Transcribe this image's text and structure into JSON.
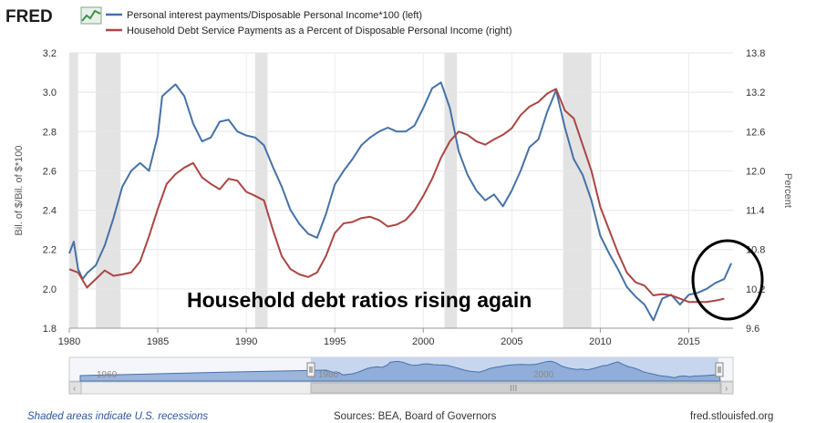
{
  "branding": {
    "logo": "FRED"
  },
  "legend": [
    {
      "label": "Personal interest payments/Disposable Personal Income*100 (left)",
      "color": "#4572a7"
    },
    {
      "label": "Household Debt Service Payments as a Percent of Disposable Personal Income (right)",
      "color": "#aa4643"
    }
  ],
  "annotation": {
    "text": "Household debt ratios rising again",
    "highlight_color": "#000000"
  },
  "footer": {
    "recession_note": "Shaded areas indicate U.S. recessions",
    "sources": "Sources: BEA, Board of Governors",
    "site": "fred.stlouisfed.org"
  },
  "navigator": {
    "year_labels": [
      "1960",
      "1980",
      "2000"
    ],
    "scroll_left": "‹",
    "scroll_right": "›",
    "grip": "III"
  },
  "chart_data": {
    "type": "line",
    "x_range": [
      1980,
      2017.5
    ],
    "x_ticks": [
      "1980",
      "1985",
      "1990",
      "1995",
      "2000",
      "2005",
      "2010",
      "2015"
    ],
    "y_left": {
      "label": "Bil. of $/Bil. of $*100",
      "range": [
        1.8,
        3.2
      ],
      "ticks": [
        "1.8",
        "2.0",
        "2.2",
        "2.4",
        "2.6",
        "2.8",
        "3.0",
        "3.2"
      ]
    },
    "y_right": {
      "label": "Percent",
      "range": [
        9.6,
        13.8
      ],
      "ticks": [
        "9.6",
        "10.2",
        "10.8",
        "11.4",
        "12.0",
        "12.6",
        "13.2",
        "13.8"
      ]
    },
    "recessions": [
      [
        1980.0,
        1980.5
      ],
      [
        1981.5,
        1982.9
      ],
      [
        1990.5,
        1991.2
      ],
      [
        2001.2,
        2001.9
      ],
      [
        2007.9,
        2009.5
      ]
    ],
    "grid": true,
    "series": [
      {
        "name": "Personal interest payments/Disposable Personal Income*100 (left)",
        "axis": "left",
        "color": "#4572a7",
        "x": [
          1980.0,
          1980.25,
          1980.5,
          1980.75,
          1981.0,
          1981.5,
          1982.0,
          1982.5,
          1983.0,
          1983.5,
          1984.0,
          1984.5,
          1985.0,
          1985.25,
          1985.5,
          1986.0,
          1986.5,
          1987.0,
          1987.5,
          1988.0,
          1988.5,
          1989.0,
          1989.5,
          1990.0,
          1990.5,
          1991.0,
          1991.5,
          1992.0,
          1992.5,
          1993.0,
          1993.5,
          1994.0,
          1994.5,
          1995.0,
          1995.5,
          1996.0,
          1996.5,
          1997.0,
          1997.5,
          1998.0,
          1998.5,
          1999.0,
          1999.5,
          2000.0,
          2000.5,
          2001.0,
          2001.5,
          2002.0,
          2002.5,
          2003.0,
          2003.5,
          2004.0,
          2004.5,
          2005.0,
          2005.5,
          2006.0,
          2006.5,
          2007.0,
          2007.5,
          2008.0,
          2008.5,
          2009.0,
          2009.5,
          2010.0,
          2010.5,
          2011.0,
          2011.5,
          2012.0,
          2012.5,
          2013.0,
          2013.5,
          2014.0,
          2014.5,
          2015.0,
          2015.5,
          2016.0,
          2016.5,
          2017.0,
          2017.4
        ],
        "y": [
          2.18,
          2.24,
          2.1,
          2.05,
          2.08,
          2.12,
          2.22,
          2.36,
          2.52,
          2.6,
          2.64,
          2.6,
          2.78,
          2.98,
          3.0,
          3.04,
          2.98,
          2.84,
          2.75,
          2.77,
          2.85,
          2.86,
          2.8,
          2.78,
          2.77,
          2.73,
          2.62,
          2.52,
          2.4,
          2.33,
          2.28,
          2.26,
          2.38,
          2.53,
          2.6,
          2.66,
          2.73,
          2.77,
          2.8,
          2.82,
          2.8,
          2.8,
          2.83,
          2.92,
          3.02,
          3.05,
          2.92,
          2.7,
          2.58,
          2.5,
          2.45,
          2.48,
          2.42,
          2.5,
          2.6,
          2.72,
          2.76,
          2.9,
          3.01,
          2.82,
          2.66,
          2.58,
          2.45,
          2.27,
          2.18,
          2.1,
          2.01,
          1.96,
          1.92,
          1.84,
          1.95,
          1.97,
          1.92,
          1.97,
          1.98,
          2.0,
          2.03,
          2.05,
          2.13
        ]
      },
      {
        "name": "Household Debt Service Payments as a Percent of Disposable Personal Income (right)",
        "axis": "right",
        "color": "#aa4643",
        "x": [
          1980.0,
          1980.5,
          1981.0,
          1981.5,
          1982.0,
          1982.5,
          1983.0,
          1983.5,
          1984.0,
          1984.5,
          1985.0,
          1985.5,
          1986.0,
          1986.5,
          1987.0,
          1987.5,
          1988.0,
          1988.5,
          1989.0,
          1989.5,
          1990.0,
          1990.5,
          1991.0,
          1991.5,
          1992.0,
          1992.5,
          1993.0,
          1993.5,
          1994.0,
          1994.5,
          1995.0,
          1995.5,
          1996.0,
          1996.5,
          1997.0,
          1997.5,
          1998.0,
          1998.5,
          1999.0,
          1999.5,
          2000.0,
          2000.5,
          2001.0,
          2001.5,
          2002.0,
          2002.5,
          2003.0,
          2003.5,
          2004.0,
          2004.5,
          2005.0,
          2005.5,
          2006.0,
          2006.5,
          2007.0,
          2007.5,
          2008.0,
          2008.5,
          2009.0,
          2009.5,
          2010.0,
          2010.5,
          2011.0,
          2011.5,
          2012.0,
          2012.5,
          2013.0,
          2013.5,
          2014.0,
          2014.5,
          2015.0,
          2015.5,
          2016.0,
          2016.5,
          2017.0
        ],
        "y": [
          10.5,
          10.45,
          10.22,
          10.35,
          10.48,
          10.4,
          10.42,
          10.45,
          10.62,
          11.0,
          11.42,
          11.8,
          11.95,
          12.05,
          12.12,
          11.9,
          11.8,
          11.72,
          11.88,
          11.85,
          11.68,
          11.62,
          11.55,
          11.1,
          10.7,
          10.5,
          10.42,
          10.38,
          10.45,
          10.7,
          11.05,
          11.2,
          11.22,
          11.28,
          11.3,
          11.25,
          11.15,
          11.18,
          11.25,
          11.4,
          11.62,
          11.88,
          12.2,
          12.45,
          12.6,
          12.55,
          12.45,
          12.4,
          12.48,
          12.55,
          12.65,
          12.85,
          12.98,
          13.05,
          13.18,
          13.25,
          12.92,
          12.8,
          12.4,
          12.0,
          11.45,
          11.1,
          10.75,
          10.45,
          10.3,
          10.25,
          10.1,
          10.12,
          10.1,
          10.05,
          10.0,
          10.0,
          10.0,
          10.02,
          10.05
        ]
      }
    ]
  }
}
